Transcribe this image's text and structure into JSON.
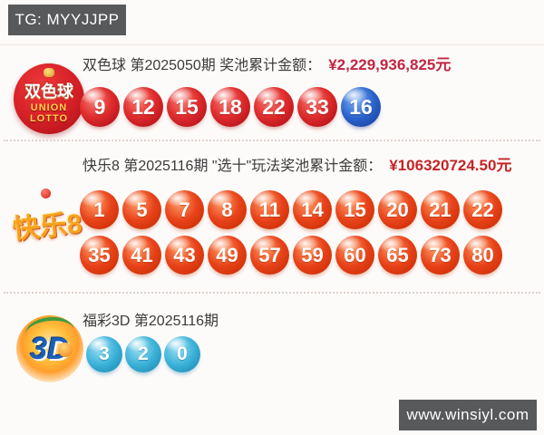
{
  "header": {
    "badge_label": "TG: MYYJJPP"
  },
  "footer": {
    "badge_label": "www.winsiyl.com"
  },
  "colors": {
    "badge_bg": "#58595b",
    "badge_text": "#ffffff",
    "amount_crimson": "#c02743",
    "amount_red": "#c42525",
    "ball_red": "#d5232b",
    "ball_blue": "#2257c4",
    "ball_orange": "#e23c14",
    "ball_sky": "#38b0d8",
    "title_text": "#3b3b3b"
  },
  "sections": {
    "ssq": {
      "logo": {
        "cn": "双色球",
        "en1": "UNION",
        "en2": "LOTTO"
      },
      "title": "双色球 第2025050期 奖池累计金额：",
      "amount": "¥2,229,936,825元",
      "rows": [
        [
          {
            "n": "9",
            "c": "red"
          },
          {
            "n": "12",
            "c": "red"
          },
          {
            "n": "15",
            "c": "red"
          },
          {
            "n": "18",
            "c": "red"
          },
          {
            "n": "22",
            "c": "red"
          },
          {
            "n": "33",
            "c": "red"
          },
          {
            "n": "16",
            "c": "blue"
          }
        ]
      ]
    },
    "kl8": {
      "logo": {
        "text": "快乐8"
      },
      "title": "快乐8 第2025116期 \"选十\"玩法奖池累计金额：",
      "amount": "¥106320724.50元",
      "rows": [
        [
          {
            "n": "1",
            "c": "orange"
          },
          {
            "n": "5",
            "c": "orange"
          },
          {
            "n": "7",
            "c": "orange"
          },
          {
            "n": "8",
            "c": "orange"
          },
          {
            "n": "11",
            "c": "orange"
          },
          {
            "n": "14",
            "c": "orange"
          },
          {
            "n": "15",
            "c": "orange"
          },
          {
            "n": "20",
            "c": "orange"
          },
          {
            "n": "21",
            "c": "orange"
          },
          {
            "n": "22",
            "c": "orange"
          }
        ],
        [
          {
            "n": "35",
            "c": "orange"
          },
          {
            "n": "41",
            "c": "orange"
          },
          {
            "n": "43",
            "c": "orange"
          },
          {
            "n": "49",
            "c": "orange"
          },
          {
            "n": "57",
            "c": "orange"
          },
          {
            "n": "59",
            "c": "orange"
          },
          {
            "n": "60",
            "c": "orange"
          },
          {
            "n": "65",
            "c": "orange"
          },
          {
            "n": "73",
            "c": "orange"
          },
          {
            "n": "80",
            "c": "orange"
          }
        ]
      ]
    },
    "fc3d": {
      "logo": {
        "text": "3D"
      },
      "title": "福彩3D 第2025116期",
      "rows": [
        [
          {
            "n": "3",
            "c": "sky"
          },
          {
            "n": "2",
            "c": "sky"
          },
          {
            "n": "0",
            "c": "sky"
          }
        ]
      ]
    }
  }
}
